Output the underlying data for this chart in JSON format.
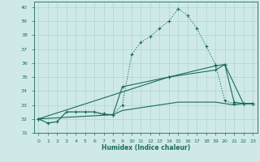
{
  "xlabel": "Humidex (Indice chaleur)",
  "xlim": [
    -0.5,
    23.5
  ],
  "ylim": [
    31.0,
    40.4
  ],
  "yticks": [
    31,
    32,
    33,
    34,
    35,
    36,
    37,
    38,
    39,
    40
  ],
  "xticks": [
    0,
    1,
    2,
    3,
    4,
    5,
    6,
    7,
    8,
    9,
    10,
    11,
    12,
    13,
    14,
    15,
    16,
    17,
    18,
    19,
    20,
    21,
    22,
    23
  ],
  "bg_color": "#cfe9e9",
  "grid_color": "#b0d4d4",
  "line_color": "#1a6b5a",
  "line1_dotted": {
    "x": [
      0,
      1,
      2,
      3,
      4,
      5,
      6,
      7,
      8,
      9,
      10,
      11,
      12,
      13,
      14,
      15,
      16,
      17,
      18,
      19,
      20,
      21,
      22,
      23
    ],
    "y": [
      32.0,
      31.7,
      31.8,
      32.5,
      32.5,
      32.5,
      32.5,
      32.4,
      32.3,
      33.0,
      36.6,
      37.5,
      37.9,
      38.5,
      39.0,
      39.9,
      39.4,
      38.5,
      37.2,
      35.9,
      33.3,
      33.1,
      33.1,
      33.1
    ]
  },
  "line2_straight": {
    "x": [
      0,
      14,
      19,
      20,
      22,
      23
    ],
    "y": [
      32.0,
      35.0,
      35.8,
      35.9,
      33.1,
      33.1
    ]
  },
  "line3_flat": {
    "x": [
      0,
      1,
      2,
      3,
      4,
      5,
      6,
      7,
      8,
      9,
      10,
      11,
      12,
      13,
      14,
      15,
      16,
      17,
      18,
      19,
      20,
      21,
      22,
      23
    ],
    "y": [
      32.0,
      31.7,
      31.8,
      32.5,
      32.5,
      32.5,
      32.5,
      32.3,
      32.3,
      32.6,
      32.7,
      32.8,
      32.9,
      33.0,
      33.1,
      33.2,
      33.2,
      33.2,
      33.2,
      33.2,
      33.1,
      33.0,
      33.1,
      33.1
    ]
  },
  "line4_medium": {
    "x": [
      0,
      8,
      9,
      14,
      19,
      20,
      21,
      22,
      23
    ],
    "y": [
      32.0,
      32.3,
      34.3,
      35.0,
      35.5,
      35.9,
      33.2,
      33.1,
      33.1
    ]
  }
}
